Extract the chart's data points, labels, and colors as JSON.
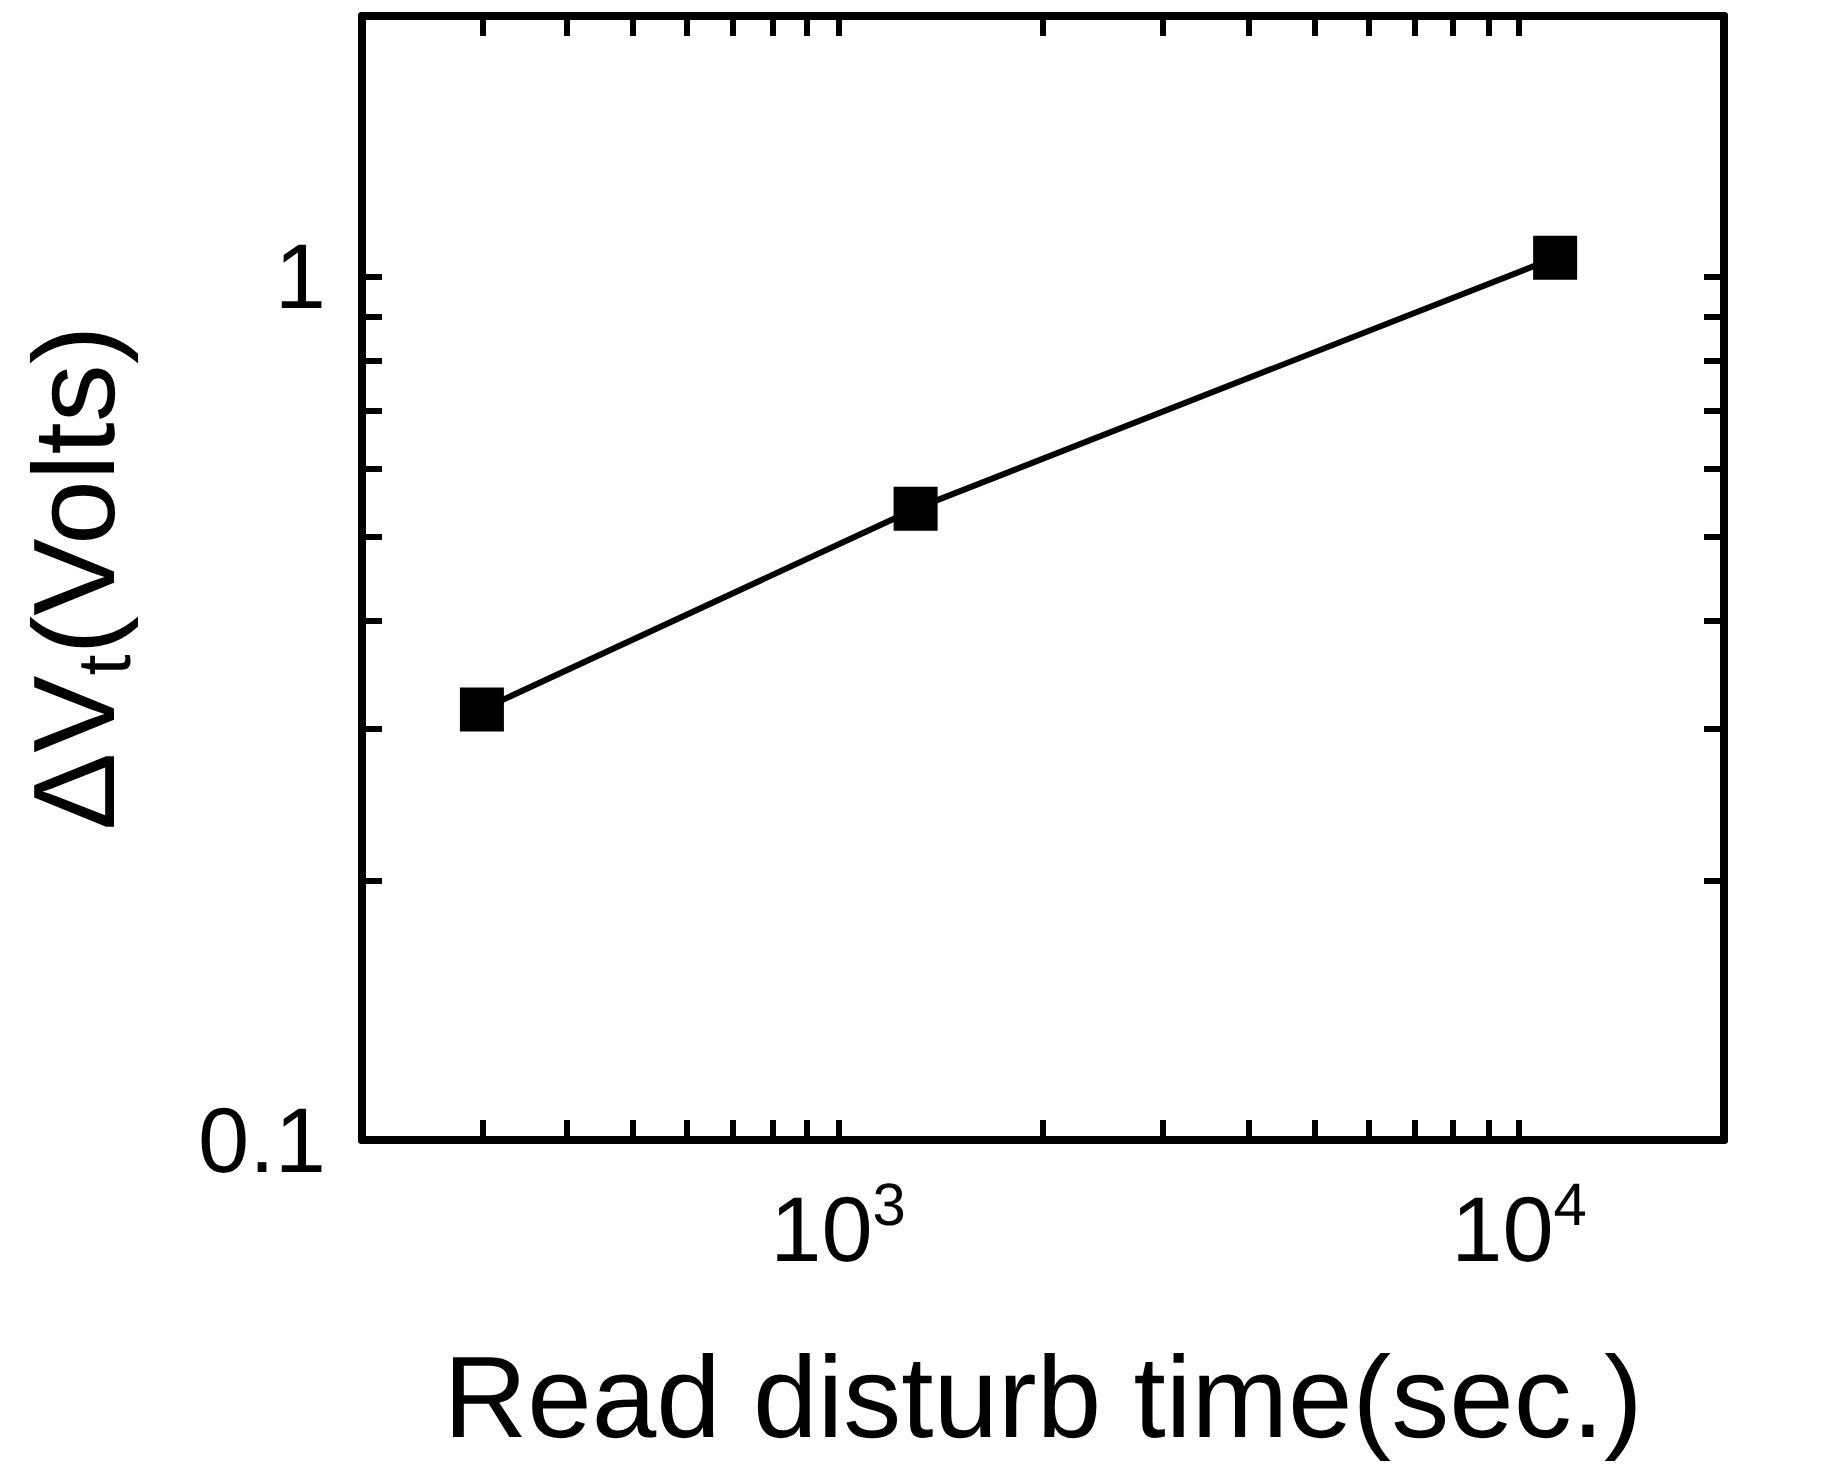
{
  "chart_data": {
    "type": "line",
    "xlabel": "Read disturb time(sec.)",
    "ylabel": "ΔV$_{t}$(Volts)",
    "x": [
      300,
      1300,
      11300
    ],
    "series": [
      {
        "color": "#000000",
        "values": [
          0.315,
          0.538,
          1.05
        ]
      }
    ],
    "log": "xy",
    "marker": "square",
    "line_style": "solid",
    "xlim": [
      200,
      20000
    ],
    "xticks": [
      {
        "value": 300,
        "label": null
      },
      {
        "value": 400,
        "label": null
      },
      {
        "value": 500,
        "label": null
      },
      {
        "value": 600,
        "label": null
      },
      {
        "value": 700,
        "label": null
      },
      {
        "value": 800,
        "label": null
      },
      {
        "value": 900,
        "label": null
      },
      {
        "value": 1000,
        "label": "10$^{3}$"
      },
      {
        "value": 2000,
        "label": null
      },
      {
        "value": 3000,
        "label": null
      },
      {
        "value": 4000,
        "label": null
      },
      {
        "value": 5000,
        "label": null
      },
      {
        "value": 6000,
        "label": null
      },
      {
        "value": 7000,
        "label": null
      },
      {
        "value": 8000,
        "label": null
      },
      {
        "value": 9000,
        "label": null
      },
      {
        "value": 10000,
        "label": "10$^{4}$"
      }
    ],
    "ylim": [
      0.1,
      2
    ],
    "yticks": [
      {
        "value": 0.1,
        "label": "0.1"
      },
      {
        "value": 0.2,
        "label": null
      },
      {
        "value": 0.3,
        "label": null
      },
      {
        "value": 0.4,
        "label": null
      },
      {
        "value": 0.5,
        "label": null
      },
      {
        "value": 0.6,
        "label": null
      },
      {
        "value": 0.7,
        "label": null
      },
      {
        "value": 0.8,
        "label": null
      },
      {
        "value": 0.9,
        "label": null
      },
      {
        "value": 1,
        "label": "1"
      }
    ]
  }
}
